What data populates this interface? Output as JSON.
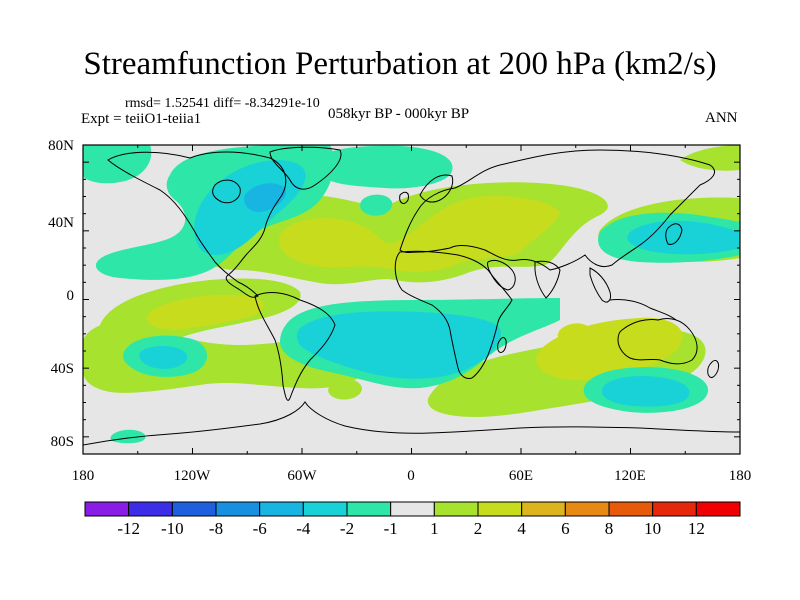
{
  "title": "Streamfunction Perturbation at 200 hPa (km2/s)",
  "stats_text": "rmsd= 1.52541 diff= -8.34291e-10",
  "expt_text": "Expt = teiiO1-teiia1",
  "period_text": "058kyr BP - 000kyr BP",
  "season_text": "ANN",
  "lat_labels": [
    "80N",
    "40N",
    "0",
    "40S",
    "80S"
  ],
  "lon_labels": [
    "180",
    "120W",
    "60W",
    "0",
    "60E",
    "120E",
    "180"
  ],
  "colorbar": {
    "labels": [
      "-12",
      "-10",
      "-8",
      "-6",
      "-4",
      "-2",
      "-1",
      "1",
      "2",
      "4",
      "6",
      "8",
      "10",
      "12"
    ],
    "colors": [
      "#8a1ce8",
      "#3c2ee6",
      "#1e5fe0",
      "#1890e2",
      "#18b4e2",
      "#19d2d8",
      "#2ee6a8",
      "#e6e6e6",
      "#a6e22e",
      "#c8dc1e",
      "#dcb41e",
      "#e68a14",
      "#e65a0a",
      "#e6280a",
      "#f00000"
    ]
  },
  "fill_colors": {
    "background": "#e6e6e6",
    "neg1": "#2ee6a8",
    "neg2": "#19d2d8",
    "neg4": "#18b4e2",
    "pos1": "#a6e22e",
    "pos2": "#c8dc1e",
    "pos4": "#dcb41e",
    "pos6": "#e68a14"
  }
}
